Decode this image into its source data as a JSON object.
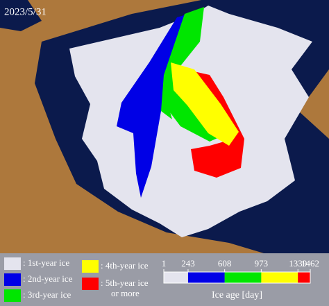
{
  "date": "2023/5/31",
  "legend": {
    "items": [
      {
        "label_lines": [
          ": 1st-year ice"
        ],
        "color": "#e4e4ee"
      },
      {
        "label_lines": [
          ": 2nd-year ice"
        ],
        "color": "#0000e6"
      },
      {
        "label_lines": [
          ": 3rd-year ice"
        ],
        "color": "#00e600"
      },
      {
        "label_lines": [
          ": 4th-year ice"
        ],
        "color": "#ffff00"
      },
      {
        "label_lines": [
          ": 5th-year ice",
          "or more"
        ],
        "color": "#ff0000"
      }
    ]
  },
  "colorbar": {
    "ticks": [
      1,
      243,
      608,
      973,
      1339,
      1462
    ],
    "label": "Ice age [day]"
  }
}
